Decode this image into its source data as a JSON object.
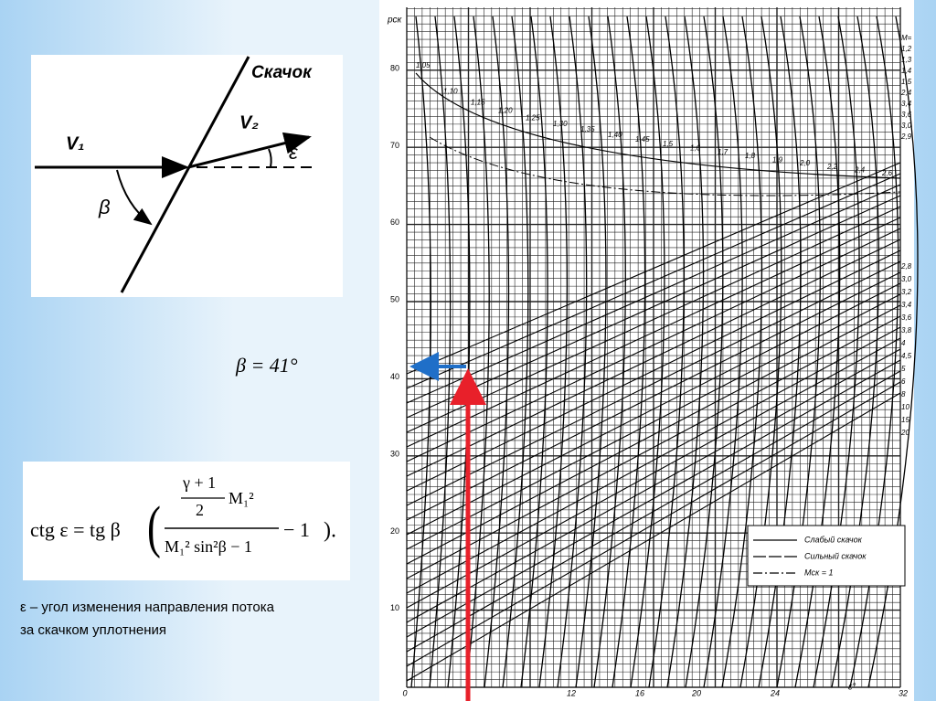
{
  "diagram": {
    "shock_label": "Скачок",
    "v1": "V₁",
    "v2": "V₂",
    "epsilon": "ε",
    "beta": "β"
  },
  "beta_value": "β = 41°",
  "formula": {
    "lhs": "ctg ε = tg β",
    "num_top": "γ + 1",
    "num_bottom": "2",
    "num_m": "M₁²",
    "denominator": "M₁² sin²β − 1",
    "tail": "− 1",
    "end": ")."
  },
  "caption": {
    "line1": "ε – угол изменения направления потока",
    "line2": "за скачком уплотнения"
  },
  "nomogram": {
    "y_axis_label": "pск",
    "x_axis_label": "ε°",
    "y_ticks": [
      "80",
      "70",
      "60",
      "50",
      "40",
      "30",
      "20",
      "10"
    ],
    "x_ticks": [
      "0",
      "12",
      "16",
      "20",
      "24",
      "32"
    ],
    "curve_labels": [
      "1,05",
      "1,10",
      "1,15",
      "1,20",
      "1,25",
      "1,30",
      "1,35",
      "1,40",
      "1,45",
      "1,5",
      "1,6",
      "1,7",
      "1,8",
      "1,9",
      "2,0",
      "2,2",
      "2,4",
      "2,6"
    ],
    "right_labels": [
      "M=",
      "1,2",
      "1,3",
      "1,4",
      "1,5",
      "2,4",
      "3,4",
      "3,6",
      "3,0",
      "2,9",
      "2,8",
      "3,0",
      "3,2",
      "3,4",
      "3,6",
      "3,8",
      "4",
      "4,5",
      "5",
      "6",
      "8",
      "10",
      "15",
      "20"
    ],
    "legend": [
      "Слабый скачок",
      "Сильный скачок",
      "Mск = 1"
    ]
  }
}
